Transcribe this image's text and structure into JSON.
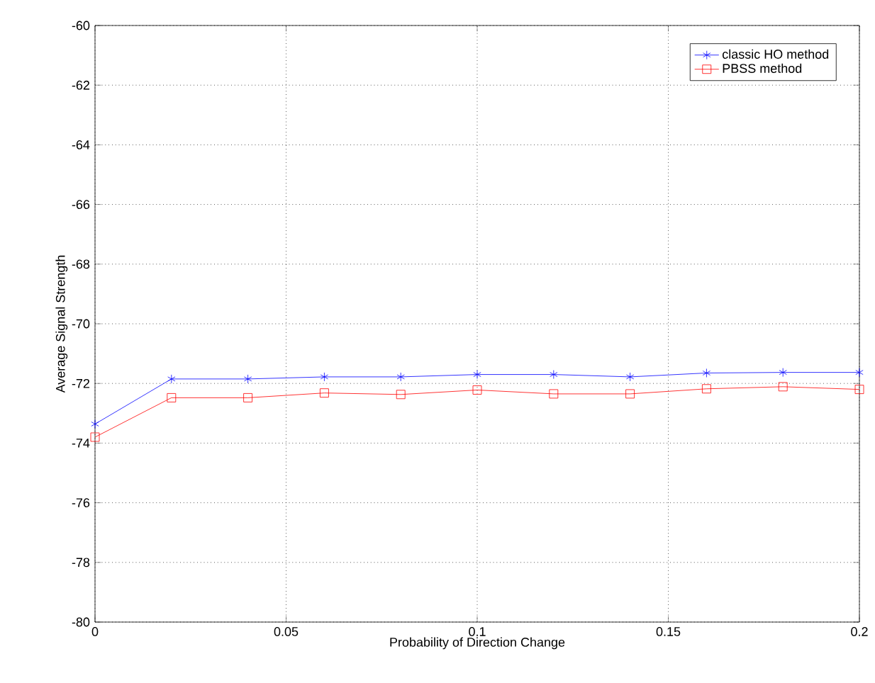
{
  "chart_data": {
    "type": "line",
    "xlabel": "Probability of Direction Change",
    "ylabel": "Average Signal Strength",
    "x": [
      0,
      0.02,
      0.04,
      0.06,
      0.08,
      0.1,
      0.12,
      0.14,
      0.16,
      0.18,
      0.2
    ],
    "series": [
      {
        "name": "classic HO method",
        "color": "#0000ff",
        "marker": "cross",
        "values": [
          -73.36,
          -71.85,
          -71.85,
          -71.78,
          -71.78,
          -71.7,
          -71.7,
          -71.78,
          -71.65,
          -71.63,
          -71.63
        ]
      },
      {
        "name": "PBSS method",
        "color": "#ff0000",
        "marker": "square",
        "values": [
          -73.8,
          -72.48,
          -72.48,
          -72.32,
          -72.37,
          -72.22,
          -72.35,
          -72.35,
          -72.18,
          -72.11,
          -72.2
        ]
      }
    ],
    "xlim": [
      0,
      0.2
    ],
    "ylim": [
      -80,
      -60
    ],
    "xticks": [
      0,
      0.05,
      0.1,
      0.15,
      0.2
    ],
    "yticks": [
      -80,
      -78,
      -76,
      -74,
      -72,
      -70,
      -68,
      -66,
      -64,
      -62,
      -60
    ],
    "grid": true,
    "legend": "top right",
    "line_style": "solid"
  }
}
